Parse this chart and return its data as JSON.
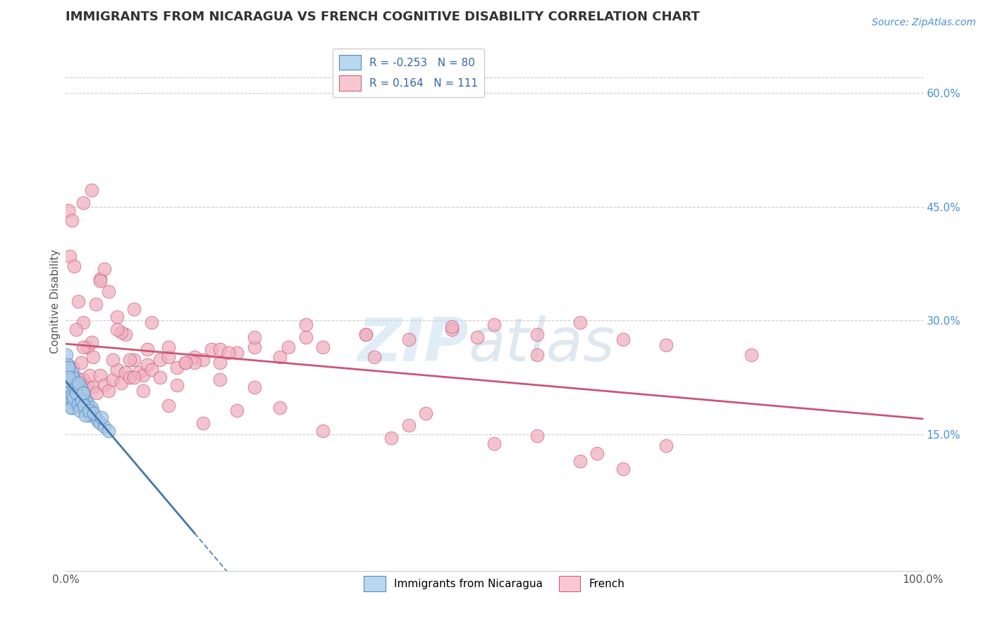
{
  "title": "IMMIGRANTS FROM NICARAGUA VS FRENCH COGNITIVE DISABILITY CORRELATION CHART",
  "source": "Source: ZipAtlas.com",
  "ylabel": "Cognitive Disability",
  "series_blue": {
    "name": "Immigrants from Nicaragua",
    "color": "#a8c8e8",
    "edge_color": "#5588bb",
    "R": -0.253,
    "N": 80,
    "trend_color": "#4477aa",
    "x": [
      0.1,
      0.15,
      0.2,
      0.25,
      0.3,
      0.35,
      0.4,
      0.45,
      0.5,
      0.55,
      0.6,
      0.65,
      0.7,
      0.75,
      0.8,
      0.85,
      0.9,
      0.95,
      1.0,
      1.1,
      1.2,
      1.3,
      1.4,
      1.5,
      1.6,
      1.7,
      1.8,
      1.9,
      2.0,
      2.2,
      2.4,
      2.6,
      2.8,
      3.0,
      3.2,
      3.5,
      3.8,
      4.0,
      4.5,
      5.0,
      0.2,
      0.3,
      0.4,
      0.5,
      0.6,
      0.7,
      0.8,
      0.9,
      1.0,
      1.2,
      1.4,
      1.6,
      1.8,
      2.0,
      2.5,
      3.0,
      0.15,
      0.25,
      0.35,
      0.45,
      0.55,
      0.65,
      0.75,
      0.85,
      1.05,
      1.25,
      1.45,
      1.65,
      1.85,
      2.1,
      2.3,
      2.7,
      3.3,
      4.2,
      0.1,
      0.2,
      0.3,
      0.4,
      1.5,
      2.0
    ],
    "y": [
      20.5,
      21.2,
      19.8,
      20.8,
      22.0,
      21.5,
      20.2,
      19.5,
      21.8,
      20.3,
      20.0,
      19.2,
      18.5,
      19.8,
      20.5,
      22.5,
      21.8,
      20.5,
      19.5,
      20.8,
      21.2,
      20.0,
      19.5,
      18.8,
      20.2,
      19.8,
      21.2,
      20.5,
      19.0,
      18.2,
      19.5,
      18.8,
      17.5,
      18.2,
      17.8,
      17.2,
      16.8,
      16.5,
      16.0,
      15.5,
      24.2,
      23.5,
      22.0,
      21.5,
      20.8,
      23.2,
      22.5,
      21.2,
      20.8,
      21.5,
      20.2,
      19.5,
      18.8,
      20.5,
      19.2,
      18.5,
      23.0,
      22.2,
      21.0,
      20.5,
      19.8,
      18.5,
      20.2,
      19.8,
      21.2,
      20.5,
      19.0,
      18.2,
      19.5,
      18.8,
      17.5,
      18.2,
      17.8,
      17.2,
      25.5,
      24.2,
      23.8,
      22.5,
      21.8,
      20.5
    ]
  },
  "series_pink": {
    "name": "French",
    "color": "#f0b0c0",
    "edge_color": "#cc6080",
    "R": 0.164,
    "N": 111,
    "trend_color": "#cc5577",
    "x": [
      0.2,
      0.4,
      0.6,
      0.8,
      1.0,
      1.2,
      1.4,
      1.6,
      1.8,
      2.0,
      2.2,
      2.5,
      2.8,
      3.2,
      3.6,
      4.0,
      4.5,
      5.0,
      5.5,
      6.0,
      6.5,
      7.0,
      7.5,
      8.0,
      8.5,
      9.0,
      9.5,
      10.0,
      11.0,
      12.0,
      13.0,
      14.0,
      15.0,
      16.0,
      17.0,
      18.0,
      20.0,
      22.0,
      25.0,
      28.0,
      30.0,
      35.0,
      40.0,
      45.0,
      50.0,
      55.0,
      60.0,
      65.0,
      70.0,
      80.0,
      0.5,
      1.0,
      1.5,
      2.0,
      2.5,
      3.0,
      4.0,
      5.0,
      6.0,
      7.0,
      8.0,
      10.0,
      12.0,
      15.0,
      18.0,
      22.0,
      28.0,
      35.0,
      45.0,
      55.0,
      0.3,
      0.7,
      1.2,
      2.0,
      3.0,
      4.5,
      6.5,
      9.0,
      13.0,
      18.0,
      25.0,
      38.0,
      50.0,
      65.0,
      2.0,
      4.0,
      6.0,
      8.0,
      12.0,
      16.0,
      20.0,
      30.0,
      40.0,
      55.0,
      70.0,
      3.5,
      7.5,
      11.0,
      22.0,
      42.0,
      60.0,
      0.8,
      1.8,
      3.2,
      5.5,
      9.5,
      14.0,
      19.0,
      26.0,
      36.0,
      48.0,
      62.0
    ],
    "y": [
      21.5,
      20.8,
      22.2,
      21.5,
      20.8,
      22.5,
      21.2,
      20.5,
      21.8,
      22.2,
      20.8,
      21.5,
      22.8,
      21.2,
      20.5,
      22.8,
      21.5,
      20.8,
      22.2,
      23.5,
      21.8,
      23.2,
      22.5,
      24.8,
      23.2,
      22.8,
      24.2,
      23.5,
      24.8,
      25.2,
      23.8,
      24.5,
      25.2,
      24.8,
      26.2,
      24.5,
      25.8,
      26.5,
      25.2,
      27.8,
      26.5,
      28.2,
      27.5,
      28.8,
      29.5,
      28.2,
      29.8,
      27.5,
      26.8,
      25.5,
      38.5,
      37.2,
      32.5,
      29.8,
      26.5,
      27.2,
      35.5,
      33.8,
      30.5,
      28.2,
      31.5,
      29.8,
      26.5,
      24.5,
      26.2,
      27.8,
      29.5,
      28.2,
      29.2,
      25.5,
      44.5,
      43.2,
      28.8,
      45.5,
      47.2,
      36.8,
      28.5,
      20.8,
      21.5,
      22.2,
      18.5,
      14.5,
      13.8,
      10.5,
      26.5,
      35.2,
      28.8,
      22.5,
      18.8,
      16.5,
      18.2,
      15.5,
      16.2,
      14.8,
      13.5,
      32.2,
      24.8,
      22.5,
      21.2,
      17.8,
      11.5,
      23.8,
      24.5,
      25.2,
      24.8,
      26.2,
      24.5,
      25.8,
      26.5,
      25.2,
      27.8,
      12.5
    ]
  },
  "xlim": [
    0,
    100
  ],
  "ylim": [
    -3,
    68
  ],
  "y_ticks_right": [
    15,
    30,
    45,
    60
  ],
  "y_tick_labels_right": [
    "15.0%",
    "30.0%",
    "45.0%",
    "60.0%"
  ],
  "x_ticks": [
    0,
    100
  ],
  "x_tick_labels": [
    "0.0%",
    "100.0%"
  ],
  "background_color": "#ffffff",
  "grid_color": "#cccccc",
  "title_color": "#333333",
  "title_fontsize": 13,
  "label_fontsize": 11,
  "legend_fontsize": 11,
  "source_fontsize": 10,
  "watermark_zip": "ZIP",
  "watermark_atlas": "atlas"
}
